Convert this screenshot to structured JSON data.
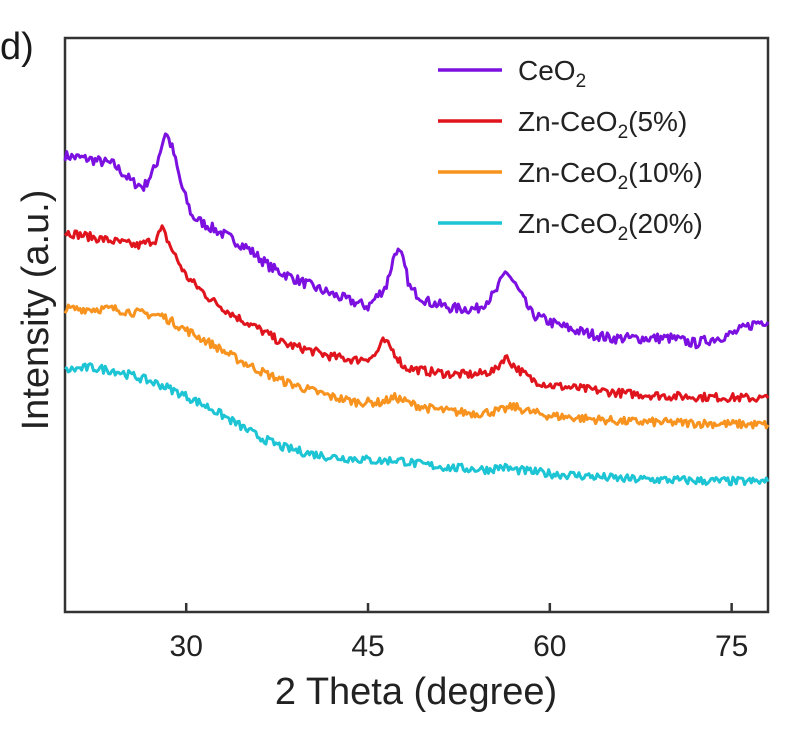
{
  "panel_label": "d)",
  "colors": {
    "ceo2": "#7b10e0",
    "zn5": "#e0141c",
    "zn10": "#f7931e",
    "zn20": "#1cc4d4",
    "axis": "#333333"
  },
  "chart_data": {
    "type": "line",
    "title": "",
    "xlabel": "2 Theta (degree)",
    "ylabel": "Intensity (a.u.)",
    "xlim": [
      20,
      78
    ],
    "ylim": [
      0,
      100
    ],
    "x_ticks": [
      30,
      45,
      60,
      75
    ],
    "x_tick_labels": [
      "30",
      "45",
      "60",
      "75"
    ],
    "y_ticks_shown": false,
    "legend_position": "top-right",
    "series": [
      {
        "name": "CeO",
        "subscript": "2",
        "suffix": "",
        "color": "#7b10e0",
        "x": [
          20,
          22,
          24,
          25.5,
          26.5,
          27.5,
          28.3,
          28.9,
          29.6,
          30.5,
          31.5,
          33,
          35,
          37,
          39,
          41,
          43,
          45,
          46.5,
          47.3,
          47.8,
          48.5,
          50,
          52,
          54,
          55.5,
          56.4,
          57.2,
          58.5,
          60,
          62,
          65,
          68,
          70,
          72,
          75,
          77,
          78
        ],
        "y": [
          79.5,
          78.9,
          78.0,
          75.0,
          74.0,
          77.7,
          83.7,
          80.5,
          74.3,
          68.9,
          67.6,
          65.9,
          63.5,
          60.0,
          58.0,
          56.2,
          54.6,
          53.2,
          56.8,
          63.2,
          61.9,
          56.2,
          54.0,
          52.9,
          52.8,
          55.5,
          59.5,
          56.8,
          51.9,
          50.5,
          49.1,
          47.7,
          47.7,
          47.7,
          46.8,
          48.4,
          50.4,
          50.8
        ]
      },
      {
        "name": "Zn-CeO",
        "subscript": "2",
        "suffix": "(5%)",
        "color": "#e0141c",
        "x": [
          20,
          22,
          24,
          26,
          27.5,
          28,
          29,
          30,
          32,
          34,
          36,
          38,
          40,
          42,
          44,
          45.5,
          46.3,
          47,
          48,
          50,
          52,
          54,
          55.5,
          56.3,
          57.2,
          58.5,
          60,
          63,
          66,
          70,
          74,
          78
        ],
        "y": [
          66.2,
          65.4,
          64.6,
          63.8,
          64.9,
          66.8,
          62.4,
          58.5,
          54.5,
          51.6,
          49.3,
          46.8,
          45.7,
          44.5,
          43.9,
          44.5,
          47.3,
          45.7,
          42.6,
          41.9,
          41.4,
          41.4,
          42.1,
          44.5,
          42.6,
          40.5,
          39.5,
          38.8,
          38.1,
          37.6,
          37.4,
          37.2
        ]
      },
      {
        "name": "Zn-CeO",
        "subscript": "2",
        "suffix": "(10%)",
        "color": "#f7931e",
        "x": [
          20,
          22,
          24,
          26,
          28,
          30,
          32,
          34,
          36,
          38,
          40,
          42,
          44,
          46,
          47.3,
          48.5,
          50,
          52,
          54,
          56,
          57,
          58.5,
          60,
          63,
          66,
          70,
          74,
          78
        ],
        "y": [
          52.8,
          52.8,
          52.8,
          52.1,
          51.6,
          49.1,
          46.8,
          44.3,
          42.1,
          40.2,
          38.8,
          37.5,
          36.6,
          36.5,
          37.4,
          36.3,
          35.5,
          34.9,
          34.6,
          35.1,
          35.8,
          34.8,
          34.2,
          33.7,
          33.2,
          33.0,
          32.8,
          32.6
        ]
      },
      {
        "name": "Zn-CeO",
        "subscript": "2",
        "suffix": "(20%)",
        "color": "#1cc4d4",
        "x": [
          20,
          22,
          24,
          26,
          28,
          30,
          32,
          34,
          36,
          38,
          40,
          42,
          44,
          46,
          47.5,
          49,
          52,
          55,
          56,
          57,
          60,
          63,
          66,
          70,
          74,
          78
        ],
        "y": [
          42.1,
          42.6,
          42.1,
          40.9,
          39.5,
          37.6,
          35.5,
          33.0,
          30.5,
          28.7,
          27.7,
          27.0,
          26.7,
          26.3,
          26.5,
          25.8,
          25.1,
          24.8,
          25.3,
          24.8,
          24.1,
          23.7,
          23.2,
          23.0,
          22.8,
          22.7
        ]
      }
    ]
  }
}
